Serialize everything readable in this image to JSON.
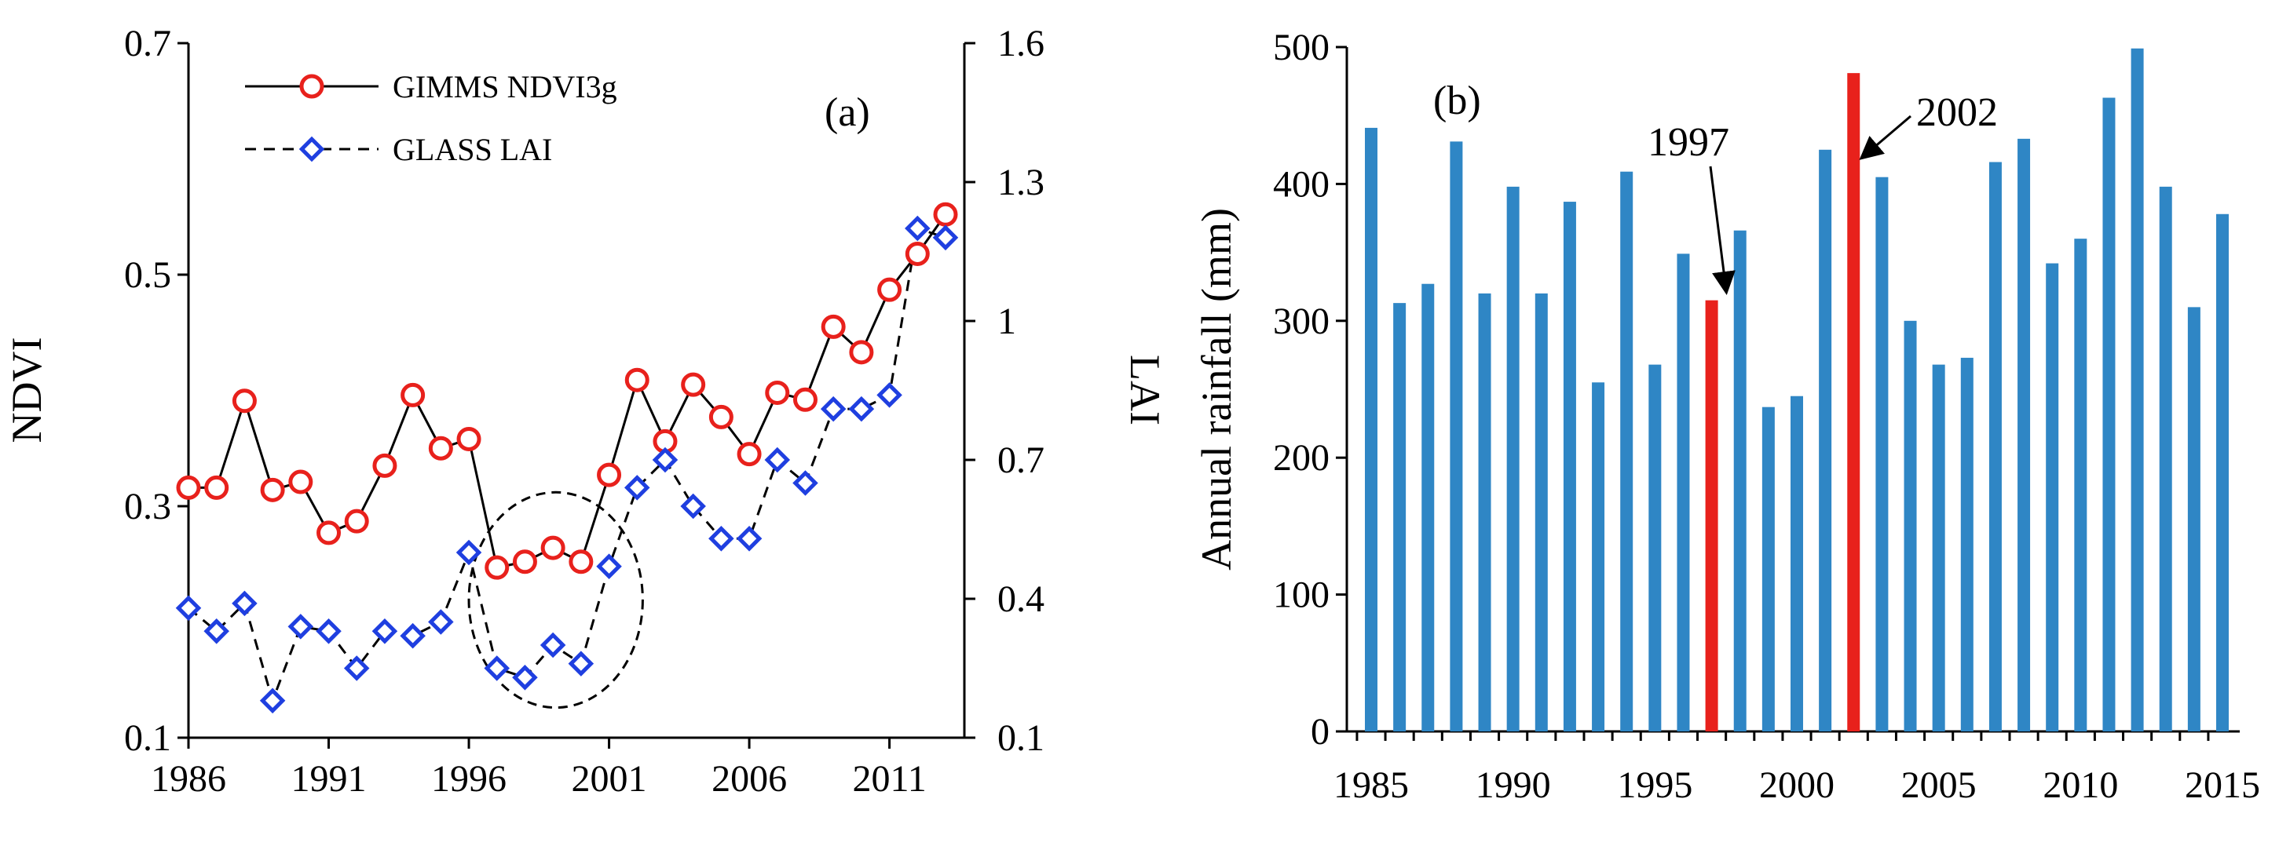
{
  "chart_data": [
    {
      "type": "line",
      "panel_label": "(a)",
      "xlabel": "",
      "ylabel": "NDVI",
      "y2label": "LAI",
      "xlim": [
        1986,
        2013
      ],
      "ylim": [
        0.1,
        0.7
      ],
      "y2lim": [
        0.1,
        1.6
      ],
      "x_ticks": [
        "1986",
        "1991",
        "1996",
        "2001",
        "2006",
        "2011"
      ],
      "y_ticks": [
        "0.1",
        "0.3",
        "0.5",
        "0.7"
      ],
      "y2_ticks": [
        "0.1",
        "0.4",
        "0.7",
        "1",
        "1.3",
        "1.6"
      ],
      "legend_position": "top-left",
      "x": [
        1986,
        1987,
        1988,
        1989,
        1990,
        1991,
        1992,
        1993,
        1994,
        1995,
        1996,
        1997,
        1998,
        1999,
        2000,
        2001,
        2002,
        2003,
        2004,
        2005,
        2006,
        2007,
        2008,
        2009,
        2010,
        2011,
        2012,
        2013
      ],
      "series": [
        {
          "name": "GIMMS NDVI3g",
          "axis": "left",
          "line": "solid",
          "marker": "circle",
          "marker_color": "#e8211c",
          "values": [
            0.316,
            0.316,
            0.391,
            0.314,
            0.321,
            0.277,
            0.287,
            0.335,
            0.396,
            0.35,
            0.358,
            0.247,
            0.252,
            0.264,
            0.252,
            0.327,
            0.409,
            0.356,
            0.405,
            0.377,
            0.345,
            0.398,
            0.392,
            0.455,
            0.433,
            0.487,
            0.518,
            0.552
          ]
        },
        {
          "name": "GLASS LAI",
          "axis": "right",
          "line": "dashed",
          "marker": "diamond",
          "marker_color": "#1f3fe0",
          "values": [
            0.38,
            0.33,
            0.39,
            0.18,
            0.34,
            0.33,
            0.25,
            0.33,
            0.32,
            0.35,
            0.5,
            0.25,
            0.23,
            0.3,
            0.26,
            0.47,
            0.64,
            0.7,
            0.6,
            0.53,
            0.53,
            0.7,
            0.65,
            0.81,
            0.81,
            0.84,
            1.2,
            1.18
          ]
        }
      ],
      "annotations": [
        {
          "type": "dashed-ellipse",
          "cx": 1999.1,
          "cy": 0.219,
          "rx": 3.1,
          "ry": 0.093
        }
      ]
    },
    {
      "type": "bar",
      "panel_label": "(b)",
      "xlabel": "",
      "ylabel": "Annual rainfall (mm)",
      "ylim": [
        0,
        500
      ],
      "y_ticks": [
        "0",
        "100",
        "200",
        "300",
        "400",
        "500"
      ],
      "x_ticks": [
        "1985",
        "1990",
        "1995",
        "2000",
        "2005",
        "2010",
        "2015"
      ],
      "bar_color": "#2f86c5",
      "highlight_color": "#e8211c",
      "categories": [
        "1985",
        "1986",
        "1987",
        "1988",
        "1989",
        "1990",
        "1991",
        "1992",
        "1993",
        "1994",
        "1995",
        "1996",
        "1997",
        "1998",
        "1999",
        "2000",
        "2001",
        "2002",
        "2003",
        "2004",
        "2005",
        "2006",
        "2007",
        "2008",
        "2009",
        "2010",
        "2011",
        "2012",
        "2013",
        "2014",
        "2015"
      ],
      "values": [
        441,
        313,
        327,
        431,
        320,
        398,
        320,
        387,
        255,
        409,
        268,
        349,
        315,
        366,
        237,
        245,
        425,
        481,
        405,
        300,
        268,
        273,
        416,
        433,
        342,
        360,
        463,
        499,
        398,
        310,
        378
      ],
      "highlight": [
        "1997",
        "2002"
      ],
      "annotations": [
        {
          "text": "1997",
          "points_to": "1997"
        },
        {
          "text": "2002",
          "points_to": "2002"
        }
      ]
    }
  ]
}
